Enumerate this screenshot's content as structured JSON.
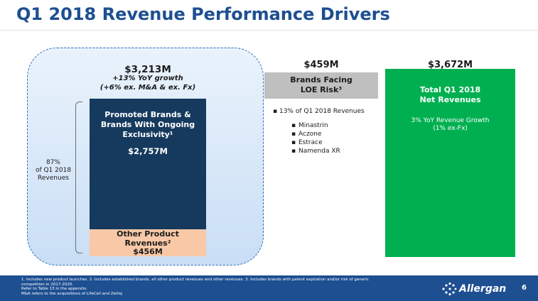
{
  "title": "Q1 2018 Revenue Performance Drivers",
  "chart_data": {
    "type": "bar",
    "title": "Q1 2018 Revenue Performance Drivers",
    "units": "$M",
    "stacks": [
      {
        "name": "Core",
        "total_label": "$3,213M",
        "total": 3213,
        "growth_line1": "+13% YoY growth",
        "growth_line2": "(+6% ex. M&A & ex. Fx)",
        "share_line1": "87%",
        "share_line2": "of Q1 2018",
        "share_line3": "Revenues",
        "segments": [
          {
            "label_lines": [
              "Promoted Brands &",
              "Brands With Ongoing",
              "Exclusivity¹"
            ],
            "value": 2757,
            "value_label": "$2,757M",
            "color": "#163a5e"
          },
          {
            "label_lines": [
              "Other Product",
              "Revenues²"
            ],
            "value": 456,
            "value_label": "$456M",
            "color": "#f8c8a7"
          }
        ]
      },
      {
        "name": "LOE",
        "value": 459,
        "value_label": "$459M",
        "label_lines": [
          "Brands Facing",
          "LOE Risk³"
        ],
        "color": "#bfbfbf",
        "bullet": "13% of Q1 2018 Revenues",
        "brands": [
          "Minastrin",
          "Aczone",
          "Estrace",
          "Namenda XR"
        ]
      },
      {
        "name": "Total",
        "value": 3672,
        "value_label": "$3,672M",
        "label_lines": [
          "Total Q1 2018",
          "Net Revenues"
        ],
        "growth_lines": [
          "3% YoY Revenue Growth",
          "(1% ex-Fx)"
        ],
        "color": "#00b050"
      }
    ]
  },
  "footer": {
    "line1": "1. Includes new product launches. 2. Includes established brands, all other product revenues and other revenues. 3. Includes brands with patent expiration and/or risk of generic",
    "line2": "competition in 2017-2020.",
    "line3": "Refer to Table 13 in the appendix.",
    "line4": "M&A refers to the acquisitions of LifeCell and Zeltiq",
    "logo_text": "Allergan",
    "page_number": "6"
  }
}
